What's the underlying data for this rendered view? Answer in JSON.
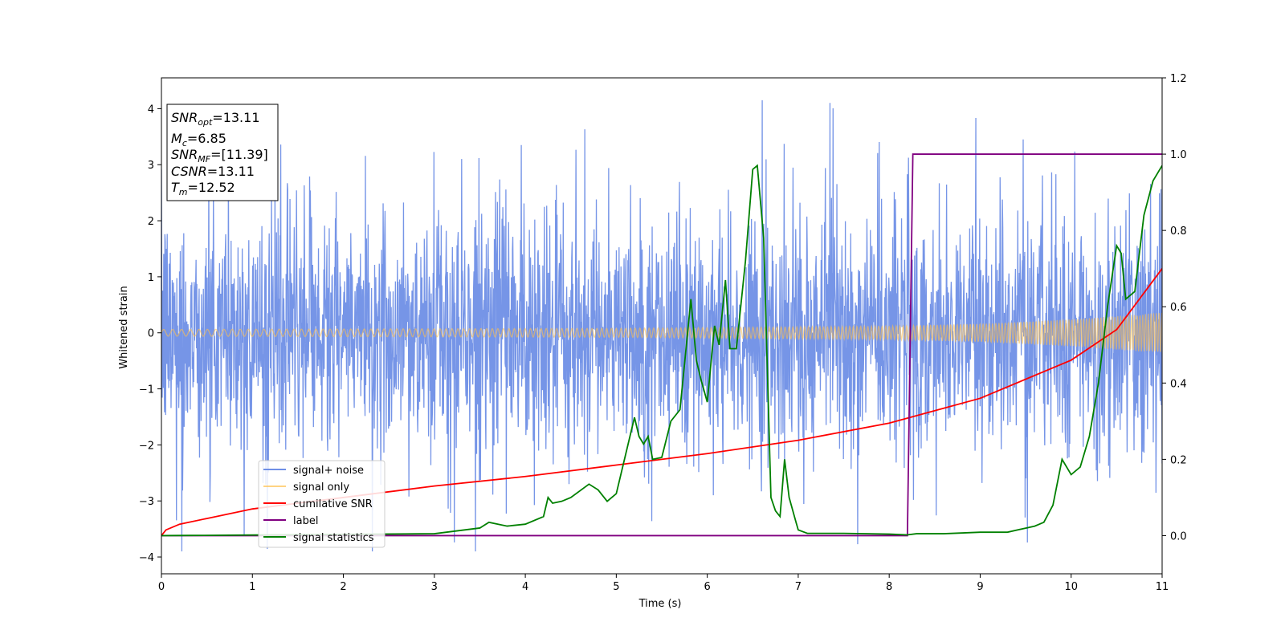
{
  "chart_data": {
    "type": "line",
    "xlabel": "Time (s)",
    "ylabel": "Whitened strain",
    "xlim": [
      0,
      11
    ],
    "ylim": [
      -4.3,
      4.55
    ],
    "ylim_right": [
      -0.1,
      1.2
    ],
    "xticks": [
      "0",
      "1",
      "2",
      "3",
      "4",
      "5",
      "6",
      "7",
      "8",
      "9",
      "10",
      "11"
    ],
    "yticks": [
      "4",
      "3",
      "2",
      "1",
      "0",
      "−1",
      "−2",
      "−3",
      "−4"
    ],
    "yticks_right": [
      "1.2",
      "1.0",
      "0.8",
      "0.6",
      "0.4",
      "0.2",
      "0.0"
    ],
    "annotation": {
      "snr_opt": {
        "base": "SNR",
        "sub": "opt",
        "value": "=13.11"
      },
      "mc": {
        "base": "M",
        "sub": "c",
        "value": "=6.85"
      },
      "snr_mf": {
        "base": "SNR",
        "sub": "MF",
        "value": "=[11.39]"
      },
      "csnr": {
        "base": "CSNR",
        "value": "=13.11"
      },
      "tm": {
        "base": "T",
        "sub": "m",
        "value": "=12.52"
      }
    },
    "legend_position": "lower-left",
    "series": [
      {
        "name": "signal+ noise",
        "color": "#6f8fe6",
        "axis": "left",
        "description_envelope": {
          "typical_amplitude": 1.5,
          "peak_max": 4.15,
          "peak_min": -3.9
        }
      },
      {
        "name": "signal only",
        "color": "#ffc04d",
        "axis": "left",
        "envelope": {
          "x": [
            0,
            5,
            8,
            9,
            10,
            11
          ],
          "amp": [
            0.06,
            0.08,
            0.12,
            0.16,
            0.24,
            0.36
          ]
        }
      },
      {
        "name": "cumilative SNR",
        "color": "#ff0000",
        "axis": "right",
        "x": [
          0,
          0.05,
          0.2,
          0.5,
          1,
          2,
          3,
          4,
          5,
          6,
          7,
          8,
          9,
          10,
          10.5,
          11
        ],
        "y": [
          0.0,
          0.015,
          0.03,
          0.045,
          0.07,
          0.1,
          0.13,
          0.155,
          0.185,
          0.215,
          0.25,
          0.295,
          0.36,
          0.46,
          0.54,
          0.7
        ]
      },
      {
        "name": "label",
        "color": "#800080",
        "axis": "right",
        "x": [
          0,
          8.2,
          8.26,
          11
        ],
        "y": [
          0,
          0,
          1,
          1
        ]
      },
      {
        "name": "signal statistics",
        "color": "#008000",
        "axis": "right",
        "x": [
          0,
          3,
          3.5,
          3.6,
          3.8,
          4.0,
          4.2,
          4.25,
          4.3,
          4.4,
          4.5,
          4.7,
          4.8,
          4.9,
          5.0,
          5.1,
          5.2,
          5.25,
          5.3,
          5.35,
          5.4,
          5.5,
          5.6,
          5.7,
          5.75,
          5.82,
          5.88,
          5.93,
          6.0,
          6.08,
          6.13,
          6.2,
          6.25,
          6.32,
          6.42,
          6.5,
          6.55,
          6.62,
          6.7,
          6.75,
          6.8,
          6.85,
          6.9,
          6.97,
          7.0,
          7.1,
          7.3,
          7.5,
          8.0,
          8.2,
          8.3,
          8.6,
          9.0,
          9.3,
          9.6,
          9.7,
          9.8,
          9.9,
          10.0,
          10.1,
          10.2,
          10.3,
          10.4,
          10.5,
          10.55,
          10.6,
          10.7,
          10.8,
          10.9,
          11.0
        ],
        "y": [
          0,
          0.005,
          0.02,
          0.035,
          0.025,
          0.03,
          0.05,
          0.1,
          0.085,
          0.09,
          0.1,
          0.135,
          0.12,
          0.09,
          0.11,
          0.21,
          0.31,
          0.26,
          0.24,
          0.26,
          0.2,
          0.205,
          0.3,
          0.33,
          0.45,
          0.62,
          0.46,
          0.41,
          0.35,
          0.55,
          0.5,
          0.67,
          0.49,
          0.49,
          0.72,
          0.96,
          0.97,
          0.78,
          0.1,
          0.065,
          0.05,
          0.2,
          0.1,
          0.04,
          0.015,
          0.006,
          0.006,
          0.006,
          0.004,
          0.002,
          0.005,
          0.005,
          0.009,
          0.009,
          0.025,
          0.035,
          0.08,
          0.2,
          0.16,
          0.18,
          0.26,
          0.4,
          0.6,
          0.76,
          0.74,
          0.62,
          0.64,
          0.84,
          0.93,
          0.97
        ]
      }
    ]
  }
}
